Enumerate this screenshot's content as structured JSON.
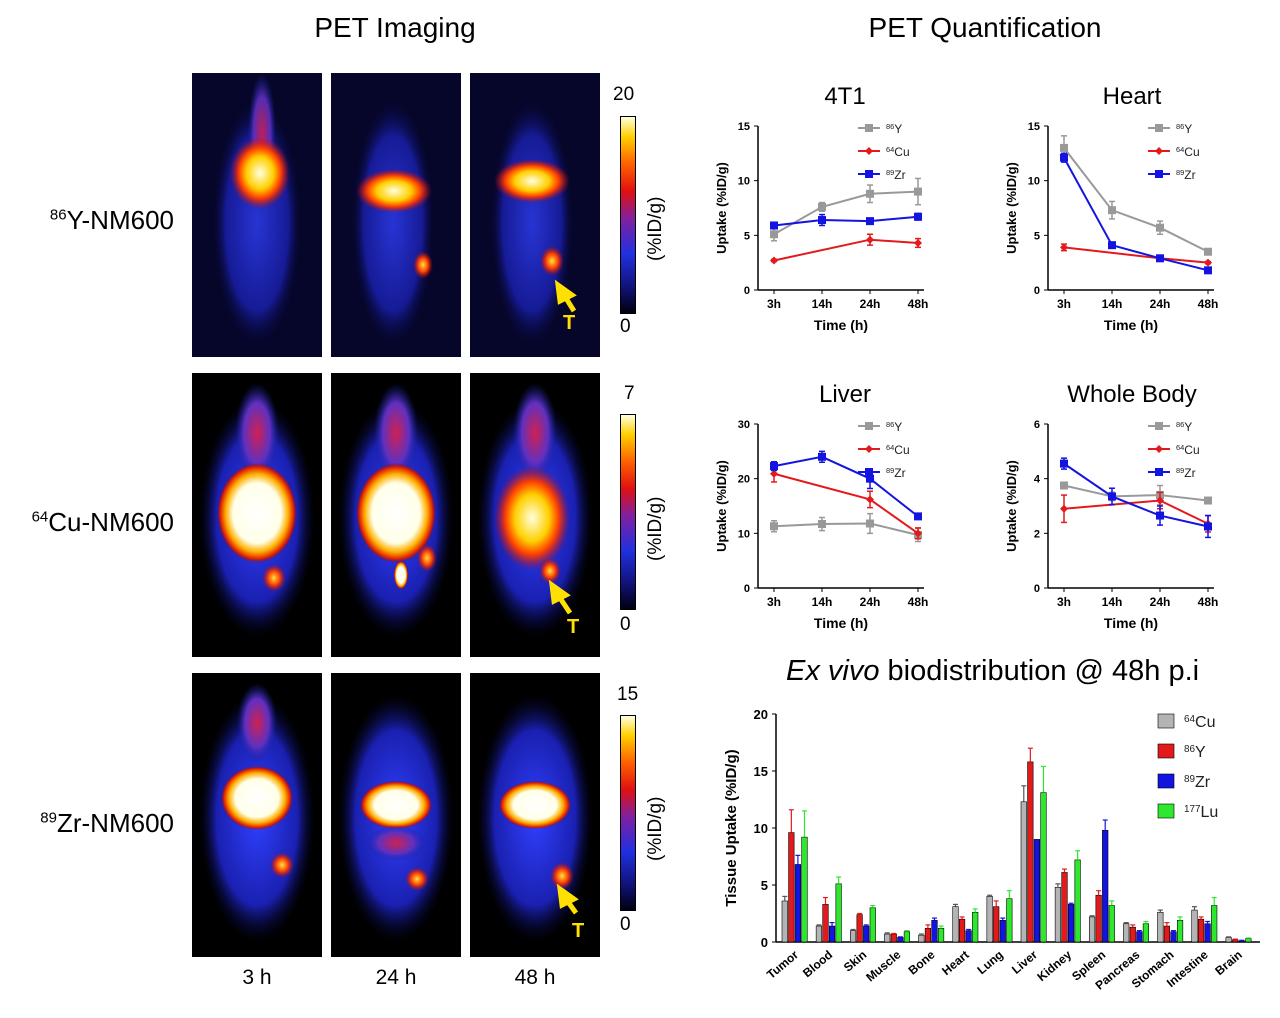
{
  "left": {
    "title": "PET Imaging",
    "rows": [
      {
        "iso": "86",
        "label": "Y-NM600",
        "scale_max": "20",
        "scale_min": "0",
        "unit": "(%ID/g)"
      },
      {
        "iso": "64",
        "label": "Cu-NM600",
        "scale_max": "7",
        "scale_min": "0",
        "unit": "(%ID/g)"
      },
      {
        "iso": "89",
        "label": "Zr-NM600",
        "scale_max": "15",
        "scale_min": "0",
        "unit": "(%ID/g)"
      }
    ],
    "times": [
      "3 h",
      "24 h",
      "48 h"
    ],
    "tumor_marker": "T"
  },
  "right": {
    "title": "PET Quantification",
    "biodist_title_italic": "Ex vivo",
    "biodist_title_rest": " biodistribution @ 48h p.i"
  },
  "chart_data": [
    {
      "type": "line",
      "title": "4T1",
      "xlabel": "Time (h)",
      "ylabel": "Uptake (%ID/g)",
      "categories": [
        "3h",
        "14h",
        "24h",
        "48h"
      ],
      "ylim": [
        0,
        15
      ],
      "yticks": [
        0,
        5,
        10,
        15
      ],
      "series": [
        {
          "name": "86Y",
          "iso": "86",
          "el": "Y",
          "color": "#999999",
          "marker": "square",
          "values": [
            5.1,
            7.6,
            8.8,
            9.0
          ],
          "err": [
            0.6,
            0.4,
            0.8,
            1.2
          ]
        },
        {
          "name": "64Cu",
          "iso": "64",
          "el": "Cu",
          "color": "#e31a1c",
          "marker": "diamond",
          "values": [
            2.7,
            null,
            4.6,
            4.3
          ],
          "err": [
            0.1,
            null,
            0.5,
            0.4
          ]
        },
        {
          "name": "89Zr",
          "iso": "89",
          "el": "Zr",
          "color": "#1414e0",
          "marker": "square",
          "values": [
            5.9,
            6.4,
            6.3,
            6.7
          ],
          "err": [
            0.3,
            0.5,
            0.2,
            0.3
          ]
        }
      ]
    },
    {
      "type": "line",
      "title": "Heart",
      "xlabel": "Time (h)",
      "ylabel": "Uptake (%ID/g)",
      "categories": [
        "3h",
        "14h",
        "24h",
        "48h"
      ],
      "ylim": [
        0,
        15
      ],
      "yticks": [
        0,
        5,
        10,
        15
      ],
      "series": [
        {
          "name": "86Y",
          "iso": "86",
          "el": "Y",
          "color": "#999999",
          "marker": "square",
          "values": [
            13.0,
            7.3,
            5.7,
            3.5
          ],
          "err": [
            1.1,
            0.8,
            0.6,
            0.2
          ]
        },
        {
          "name": "64Cu",
          "iso": "64",
          "el": "Cu",
          "color": "#e31a1c",
          "marker": "diamond",
          "values": [
            3.9,
            null,
            2.9,
            2.5
          ],
          "err": [
            0.3,
            null,
            0.2,
            0.1
          ]
        },
        {
          "name": "89Zr",
          "iso": "89",
          "el": "Zr",
          "color": "#1414e0",
          "marker": "square",
          "values": [
            12.1,
            4.1,
            2.9,
            1.8
          ],
          "err": [
            0.4,
            0.2,
            0.1,
            0.1
          ]
        }
      ]
    },
    {
      "type": "line",
      "title": "Liver",
      "xlabel": "Time (h)",
      "ylabel": "Uptake (%ID/g)",
      "categories": [
        "3h",
        "14h",
        "24h",
        "48h"
      ],
      "ylim": [
        0,
        30
      ],
      "yticks": [
        0,
        10,
        20,
        30
      ],
      "series": [
        {
          "name": "86Y",
          "iso": "86",
          "el": "Y",
          "color": "#999999",
          "marker": "square",
          "values": [
            11.3,
            11.7,
            11.8,
            9.7
          ],
          "err": [
            1.0,
            1.2,
            1.8,
            1.2
          ]
        },
        {
          "name": "64Cu",
          "iso": "64",
          "el": "Cu",
          "color": "#e31a1c",
          "marker": "diamond",
          "values": [
            20.9,
            null,
            16.2,
            10.0
          ],
          "err": [
            1.5,
            null,
            1.5,
            1.0
          ]
        },
        {
          "name": "89Zr",
          "iso": "89",
          "el": "Zr",
          "color": "#1414e0",
          "marker": "square",
          "values": [
            22.3,
            24.0,
            20.0,
            13.1
          ],
          "err": [
            0.8,
            1.0,
            1.8,
            0.5
          ]
        }
      ]
    },
    {
      "type": "line",
      "title": "Whole Body",
      "xlabel": "Time (h)",
      "ylabel": "Uptake (%ID/g)",
      "categories": [
        "3h",
        "14h",
        "24h",
        "48h"
      ],
      "ylim": [
        0,
        6
      ],
      "yticks": [
        0,
        2,
        4,
        6
      ],
      "series": [
        {
          "name": "86Y",
          "iso": "86",
          "el": "Y",
          "color": "#999999",
          "marker": "square",
          "values": [
            3.75,
            3.35,
            3.4,
            3.2
          ],
          "err": [
            0.1,
            0.15,
            0.35,
            0.1
          ]
        },
        {
          "name": "64Cu",
          "iso": "64",
          "el": "Cu",
          "color": "#e31a1c",
          "marker": "diamond",
          "values": [
            2.9,
            null,
            3.2,
            2.35
          ],
          "err": [
            0.5,
            null,
            0.3,
            0.3
          ]
        },
        {
          "name": "89Zr",
          "iso": "89",
          "el": "Zr",
          "color": "#1414e0",
          "marker": "square",
          "values": [
            4.55,
            3.35,
            2.65,
            2.25
          ],
          "err": [
            0.2,
            0.3,
            0.35,
            0.4
          ]
        }
      ]
    },
    {
      "type": "bar",
      "title": "",
      "xlabel": "",
      "ylabel": "Tissue Uptake (%ID/g)",
      "ylim": [
        0,
        20
      ],
      "yticks": [
        0,
        5,
        10,
        15,
        20
      ],
      "categories": [
        "Tumor",
        "Blood",
        "Skin",
        "Muscle",
        "Bone",
        "Heart",
        "Lung",
        "Liver",
        "Kidney",
        "Spleen",
        "Pancreas",
        "Stomach",
        "Intestine",
        "Brain"
      ],
      "series": [
        {
          "name": "64Cu",
          "iso": "64",
          "el": "Cu",
          "color": "#b4b4b4",
          "values": [
            3.6,
            1.4,
            1.0,
            0.7,
            0.6,
            3.1,
            4.0,
            12.3,
            4.8,
            2.2,
            1.6,
            2.6,
            2.8,
            0.4
          ],
          "err": [
            0.4,
            0.1,
            0.1,
            0.1,
            0.1,
            0.2,
            0.1,
            1.4,
            0.3,
            0.1,
            0.1,
            0.2,
            0.3,
            0.05
          ]
        },
        {
          "name": "86Y",
          "iso": "86",
          "el": "Y",
          "color": "#e31a1c",
          "values": [
            9.6,
            3.3,
            2.4,
            0.7,
            1.2,
            2.0,
            3.1,
            15.8,
            6.1,
            4.1,
            1.3,
            1.4,
            2.0,
            0.2
          ],
          "err": [
            2.0,
            0.6,
            0.1,
            0.05,
            0.3,
            0.2,
            0.5,
            1.2,
            0.3,
            0.4,
            0.2,
            0.3,
            0.2,
            0.05
          ]
        },
        {
          "name": "89Zr",
          "iso": "89",
          "el": "Zr",
          "color": "#1414e0",
          "values": [
            6.8,
            1.4,
            1.4,
            0.4,
            1.9,
            1.0,
            1.9,
            9.0,
            3.3,
            9.8,
            0.9,
            0.9,
            1.6,
            0.1
          ],
          "err": [
            0.8,
            0.3,
            0.1,
            0.05,
            0.2,
            0.1,
            0.2,
            0.0,
            0.1,
            0.9,
            0.1,
            0.1,
            0.2,
            0.05
          ]
        },
        {
          "name": "177Lu",
          "iso": "177",
          "el": "Lu",
          "color": "#2ee82e",
          "values": [
            9.2,
            5.1,
            3.0,
            0.9,
            1.2,
            2.6,
            3.8,
            13.1,
            7.2,
            3.2,
            1.6,
            1.9,
            3.2,
            0.3
          ],
          "err": [
            2.3,
            0.6,
            0.2,
            0.1,
            0.2,
            0.3,
            0.7,
            2.3,
            0.8,
            0.4,
            0.2,
            0.3,
            0.7,
            0.05
          ]
        }
      ]
    }
  ]
}
